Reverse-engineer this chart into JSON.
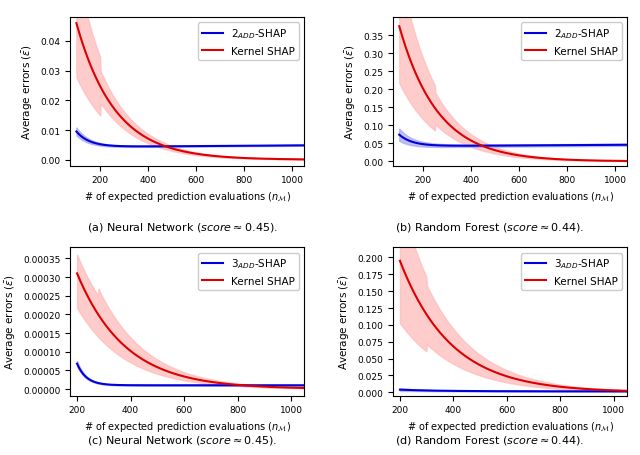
{
  "blue_color": "#0000dd",
  "red_color": "#dd0000",
  "blue_fill": "#aaaaee",
  "red_fill": "#ffbbbb",
  "xlabel": "# of expected prediction evaluations $(n_\\mathcal{M})$",
  "ylabel": "Average errors ($\\bar{\\varepsilon}$)",
  "figsize": [
    6.4,
    4.56
  ],
  "dpi": 100,
  "panels": [
    {
      "caption": "(a) Neural Network ($\\mathit{score} \\approx 0.45$).",
      "legend_blue": "2$_{ADD}$-SHAP",
      "legend_red": "Kernel SHAP",
      "xmin": 100,
      "xmax": 1050,
      "xlim": [
        75,
        1050
      ],
      "ylim": [
        -0.002,
        0.048
      ],
      "yticks": [
        0.0,
        0.01,
        0.02,
        0.03,
        0.04
      ],
      "xticks": [
        200,
        400,
        600,
        800,
        1000
      ],
      "kind": "2add_nn"
    },
    {
      "caption": "(b) Random Forest ($\\mathit{score} \\approx 0.44$).",
      "legend_blue": "2$_{ADD}$-SHAP",
      "legend_red": "Kernel SHAP",
      "xmin": 100,
      "xmax": 1050,
      "xlim": [
        75,
        1050
      ],
      "ylim": [
        -0.012,
        0.4
      ],
      "yticks": [
        0.0,
        0.05,
        0.1,
        0.15,
        0.2,
        0.25,
        0.3,
        0.35
      ],
      "xticks": [
        200,
        400,
        600,
        800,
        1000
      ],
      "kind": "2add_rf"
    },
    {
      "caption": "(c) Neural Network ($\\mathit{score} \\approx 0.45$).",
      "legend_blue": "3$_{ADD}$-SHAP",
      "legend_red": "Kernel SHAP",
      "xmin": 200,
      "xmax": 1050,
      "xlim": [
        175,
        1050
      ],
      "ylim": [
        -1.8e-05,
        0.00038
      ],
      "yticks": [
        0.0,
        5e-05,
        0.0001,
        0.00015,
        0.0002,
        0.00025,
        0.0003,
        0.00035
      ],
      "xticks": [
        200,
        400,
        600,
        800,
        1000
      ],
      "kind": "3add_nn"
    },
    {
      "caption": "(d) Random Forest ($\\mathit{score} \\approx 0.44$).",
      "legend_blue": "3$_{ADD}$-SHAP",
      "legend_red": "Kernel SHAP",
      "xmin": 200,
      "xmax": 1050,
      "xlim": [
        175,
        1050
      ],
      "ylim": [
        -0.005,
        0.215
      ],
      "yticks": [
        0.0,
        0.025,
        0.05,
        0.075,
        0.1,
        0.125,
        0.15,
        0.175,
        0.2
      ],
      "xticks": [
        200,
        400,
        600,
        800,
        1000
      ],
      "kind": "3add_rf"
    }
  ]
}
